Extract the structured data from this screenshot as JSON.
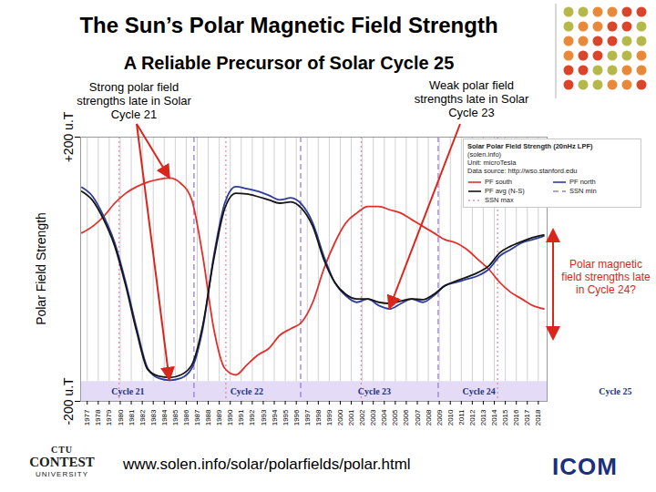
{
  "chart_data": {
    "type": "line",
    "title": "The Sun’s Polar Magnetic Field Strength",
    "subtitle": "A Reliable Precursor of Solar Cycle 25",
    "y_label": "Polar Field Strength",
    "notes": [
      "Solar Polar Field Strength (20nHz LPF)",
      "(solen.info)",
      "Unit: microTesla",
      "Data source: http://wso.stanford.edu"
    ],
    "x": [
      1976.5,
      1977.5,
      1978.5,
      1979.5,
      1980.5,
      1981.5,
      1982.5,
      1983.5,
      1984.5,
      1985.5,
      1986.5,
      1987.5,
      1988.5,
      1989.5,
      1990.5,
      1991.5,
      1992.5,
      1993.5,
      1994.5,
      1995.5,
      1996.5,
      1997.5,
      1998.5,
      1999.5,
      2000.5,
      2001.5,
      2002.5,
      2003.5,
      2004.5,
      2005.5,
      2006.5,
      2007.5,
      2008.5,
      2009.5,
      2010.5,
      2011.5,
      2012.5,
      2013.5,
      2014.5,
      2015.5,
      2016.5,
      2017.5,
      2018.5
    ],
    "series": [
      {
        "name": "PF south",
        "color": "#e0302b",
        "values": [
          55,
          65,
          80,
          100,
          115,
          125,
          132,
          136,
          138,
          130,
          105,
          20,
          -90,
          -150,
          -160,
          -145,
          -130,
          -120,
          -100,
          -90,
          -80,
          -50,
          0,
          40,
          70,
          85,
          95,
          95,
          90,
          85,
          75,
          65,
          55,
          45,
          40,
          30,
          15,
          0,
          -20,
          -35,
          -45,
          -55,
          -60
        ]
      },
      {
        "name": "PF north",
        "color": "#2e3d9c",
        "values": [
          124,
          110,
          80,
          40,
          -20,
          -90,
          -150,
          -165,
          -168,
          -165,
          -150,
          -90,
          20,
          100,
          125,
          122,
          118,
          112,
          105,
          108,
          98,
          70,
          20,
          -20,
          -40,
          -50,
          -45,
          -55,
          -60,
          -52,
          -45,
          -50,
          -40,
          -25,
          -20,
          -15,
          -10,
          0,
          20,
          30,
          40,
          45,
          50
        ]
      },
      {
        "name": "PF avg (N-S)",
        "color": "#141414",
        "values": [
          118,
          104,
          75,
          35,
          -25,
          -95,
          -152,
          -162,
          -164,
          -160,
          -145,
          -85,
          15,
          92,
          115,
          114,
          110,
          105,
          100,
          102,
          92,
          65,
          15,
          -20,
          -38,
          -45,
          -45,
          -50,
          -52,
          -48,
          -45,
          -46,
          -38,
          -25,
          -18,
          -12,
          -5,
          5,
          25,
          35,
          42,
          48,
          52
        ]
      }
    ],
    "vertical_lines": [
      {
        "name": "SSN min",
        "color": "#9a7fd0",
        "line_style": "dashed",
        "x": [
          1986.7,
          1996.4,
          2008.9
        ]
      },
      {
        "name": "SSN max",
        "color": "#e58aa6",
        "line_style": "dotted",
        "x": [
          1979.9,
          1989.6,
          2001.9,
          2014.3
        ]
      }
    ],
    "cycles": [
      {
        "label": "Cycle 21",
        "x": 1980.7
      },
      {
        "label": "Cycle 22",
        "x": 1991.5
      },
      {
        "label": "Cycle 23",
        "x": 2003.1
      },
      {
        "label": "Cycle 24",
        "x": 2012.6
      },
      {
        "label": "Cycle 25",
        "x": 2025.0
      }
    ],
    "annotations": [
      {
        "text": "Strong polar field strengths late in Solar Cycle 21"
      },
      {
        "text": "Weak polar field strengths late in Solar Cycle 23"
      },
      {
        "text": "Polar magnetic field strengths late in Cycle 24?"
      }
    ],
    "xlim": [
      1976.4,
      2018.8
    ],
    "xticks": [
      1977,
      1978,
      1979,
      1980,
      1981,
      1982,
      1983,
      1984,
      1985,
      1986,
      1987,
      1988,
      1989,
      1990,
      1991,
      1992,
      1993,
      1994,
      1995,
      1996,
      1997,
      1998,
      1999,
      2000,
      2001,
      2002,
      2003,
      2004,
      2005,
      2006,
      2007,
      2008,
      2009,
      2010,
      2011,
      2012,
      2013,
      2014,
      2015,
      2016,
      2017,
      2018
    ],
    "ylim": [
      -200,
      200
    ],
    "yticks": [
      {
        "value": -200,
        "label": "-200 u.T"
      },
      {
        "value": 200,
        "label": "+200 u.T"
      }
    ],
    "grid": true,
    "legend": "top-right"
  },
  "footer": {
    "url": "www.solen.info/solar/polarfields/polar.html",
    "logo_left": [
      "CTU",
      "CONTEST",
      "UNIVERSITY"
    ],
    "logo_right": "ICOM"
  }
}
